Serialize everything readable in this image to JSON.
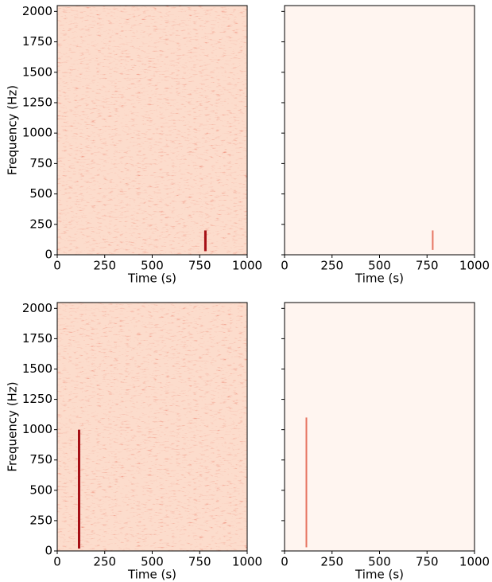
{
  "chart_data": [
    {
      "type": "heatmap",
      "xlabel": "Time (s)",
      "ylabel": "Frequency (Hz)",
      "xlim": [
        0,
        1000
      ],
      "ylim": [
        0,
        2048
      ],
      "xticks": [
        0,
        250,
        500,
        750,
        1000
      ],
      "yticks": [
        0,
        250,
        500,
        750,
        1000,
        1250,
        1500,
        1750,
        2000
      ],
      "show_ytick_labels": true,
      "noise": true,
      "background_color": "#fcdccc",
      "signal": {
        "time": 780,
        "freq": [
          30,
          200
        ],
        "color": "#a50f15"
      }
    },
    {
      "type": "heatmap",
      "xlabel": "Time (s)",
      "xlim": [
        0,
        1000
      ],
      "ylim": [
        0,
        2048
      ],
      "xticks": [
        0,
        250,
        500,
        750,
        1000
      ],
      "yticks": [
        0,
        250,
        500,
        750,
        1000,
        1250,
        1500,
        1750,
        2000
      ],
      "show_ytick_labels": false,
      "noise": false,
      "background_color": "#fff5f0",
      "signal": {
        "time": 780,
        "freq": [
          40,
          200
        ],
        "color": "#e0553f"
      }
    },
    {
      "type": "heatmap",
      "xlabel": "Time (s)",
      "ylabel": "Frequency (Hz)",
      "xlim": [
        0,
        1000
      ],
      "ylim": [
        0,
        2048
      ],
      "xticks": [
        0,
        250,
        500,
        750,
        1000
      ],
      "yticks": [
        0,
        250,
        500,
        750,
        1000,
        1250,
        1500,
        1750,
        2000
      ],
      "show_ytick_labels": true,
      "noise": true,
      "background_color": "#fcdccc",
      "signal": {
        "time": 115,
        "freq": [
          20,
          1000
        ],
        "color": "#a50f15"
      }
    },
    {
      "type": "heatmap",
      "xlabel": "Time (s)",
      "xlim": [
        0,
        1000
      ],
      "ylim": [
        0,
        2048
      ],
      "xticks": [
        0,
        250,
        500,
        750,
        1000
      ],
      "yticks": [
        0,
        250,
        500,
        750,
        1000,
        1250,
        1500,
        1750,
        2000
      ],
      "show_ytick_labels": false,
      "noise": false,
      "background_color": "#fff5f0",
      "signal": {
        "time": 115,
        "freq": [
          30,
          1100
        ],
        "color": "#e0553f"
      }
    }
  ]
}
